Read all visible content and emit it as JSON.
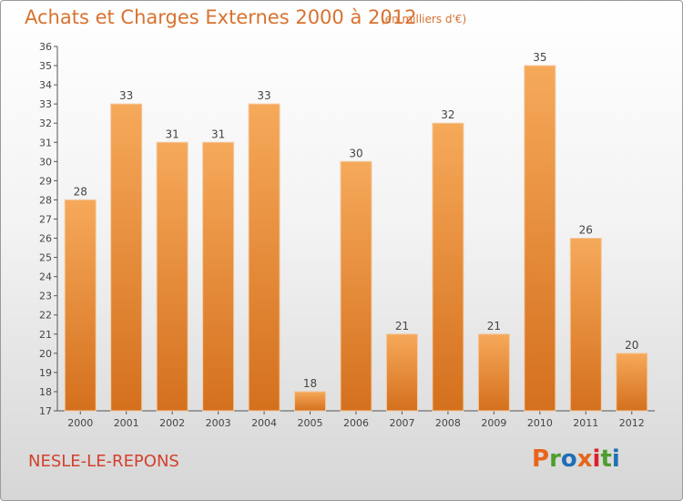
{
  "page": {
    "title": "Achats et Charges Externes 2000 à 2012",
    "subtitle": "(en milliers d'€)",
    "commune": "NESLE-LE-REPONS",
    "logo_text": "Proxiti"
  },
  "colors": {
    "title": "#d8722f",
    "commune": "#d2412d",
    "bar_light": "#f6a95a",
    "bar_dark": "#d4701d",
    "logo": [
      "#e9651b",
      "#4c9e2f",
      "#1f6fb6",
      "#e9651b",
      "#d9222a",
      "#4c9e2f",
      "#1f6fb6"
    ]
  },
  "chart_data": {
    "type": "bar",
    "categories": [
      "2000",
      "2001",
      "2002",
      "2003",
      "2004",
      "2005",
      "2006",
      "2007",
      "2008",
      "2009",
      "2010",
      "2011",
      "2012"
    ],
    "values": [
      28,
      33,
      31,
      31,
      33,
      18,
      30,
      21,
      32,
      21,
      35,
      26,
      20
    ],
    "title": "Achats et Charges Externes 2000 à 2012",
    "subtitle": "(en milliers d'€)",
    "xlabel": "",
    "ylabel": "",
    "ylim": [
      17,
      36
    ],
    "yticks": [
      17,
      18,
      19,
      20,
      21,
      22,
      23,
      24,
      25,
      26,
      27,
      28,
      29,
      30,
      31,
      32,
      33,
      34,
      35,
      36
    ],
    "grid": false,
    "data_labels": true
  }
}
